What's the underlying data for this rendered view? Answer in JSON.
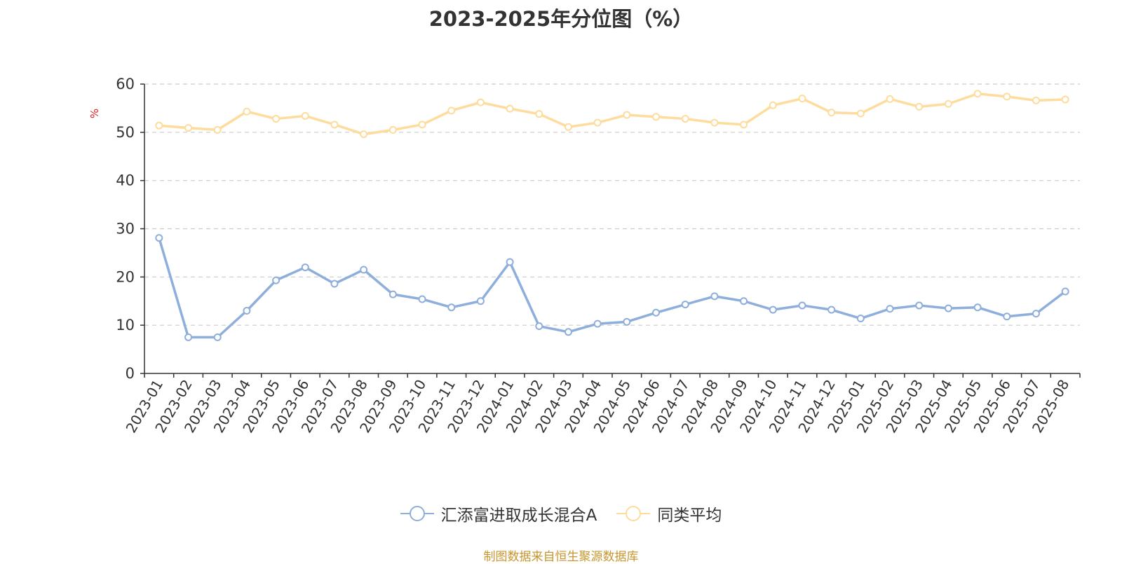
{
  "chart_data": {
    "type": "line",
    "title": "2023-2025年分位图（%）",
    "ylabel": "%",
    "xlabel": "",
    "ylim": [
      0,
      60
    ],
    "yticks": [
      0,
      10,
      20,
      30,
      40,
      50,
      60
    ],
    "grid": true,
    "legend_position": "bottom",
    "categories": [
      "2023-01",
      "2023-02",
      "2023-03",
      "2023-04",
      "2023-05",
      "2023-06",
      "2023-07",
      "2023-08",
      "2023-09",
      "2023-10",
      "2023-11",
      "2023-12",
      "2024-01",
      "2024-02",
      "2024-03",
      "2024-04",
      "2024-05",
      "2024-06",
      "2024-07",
      "2024-08",
      "2024-09",
      "2024-10",
      "2024-11",
      "2024-12",
      "2025-01",
      "2025-02",
      "2025-03",
      "2025-04",
      "2025-05",
      "2025-06",
      "2025-07",
      "2025-08"
    ],
    "series": [
      {
        "name": "汇添富进取成长混合A",
        "color": "#8eaedb",
        "values": [
          28.1,
          7.5,
          7.5,
          13.0,
          19.3,
          22.0,
          18.6,
          21.5,
          16.4,
          15.4,
          13.7,
          15.0,
          23.1,
          9.8,
          8.6,
          10.3,
          10.7,
          12.6,
          14.3,
          16.0,
          15.0,
          13.2,
          14.1,
          13.2,
          11.4,
          13.4,
          14.1,
          13.5,
          13.7,
          11.8,
          12.4,
          17.0
        ]
      },
      {
        "name": "同类平均",
        "color": "#fddc9d",
        "values": [
          51.4,
          50.9,
          50.5,
          54.3,
          52.8,
          53.4,
          51.6,
          49.6,
          50.5,
          51.6,
          54.5,
          56.2,
          54.9,
          53.8,
          51.1,
          52.0,
          53.6,
          53.2,
          52.8,
          52.0,
          51.6,
          55.6,
          57.0,
          54.1,
          53.9,
          56.9,
          55.3,
          55.9,
          58.0,
          57.4,
          56.6,
          56.8
        ]
      }
    ],
    "source_note": "制图数据来自恒生聚源数据库"
  }
}
